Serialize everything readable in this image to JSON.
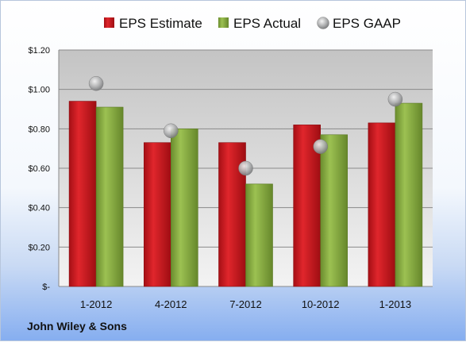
{
  "colors": {
    "estimate": "#c0161c",
    "actual": "#7fa33a",
    "gaap": "#a9aaab",
    "plot_bg_top": "#c4c4c4",
    "plot_bg_bottom": "#f3f3f3"
  },
  "footer": {
    "company": "John Wiley & Sons"
  },
  "chart_data": {
    "type": "bar",
    "categories": [
      "1-2012",
      "4-2012",
      "7-2012",
      "10-2012",
      "1-2013"
    ],
    "series": [
      {
        "name": "EPS Estimate",
        "kind": "bar",
        "values": [
          0.94,
          0.73,
          0.73,
          0.82,
          0.83
        ]
      },
      {
        "name": "EPS Actual",
        "kind": "bar",
        "values": [
          0.91,
          0.8,
          0.52,
          0.77,
          0.93
        ]
      },
      {
        "name": "EPS GAAP",
        "kind": "marker",
        "values": [
          1.03,
          0.79,
          0.6,
          0.71,
          0.95
        ]
      }
    ],
    "ylim": [
      0,
      1.2
    ],
    "yticks": [
      0,
      0.2,
      0.4,
      0.6,
      0.8,
      1.0,
      1.2
    ],
    "ytick_labels": [
      "$-",
      "$0.20",
      "$0.40",
      "$0.60",
      "$0.80",
      "$1.00",
      "$1.20"
    ],
    "grid": true,
    "legend_position": "top"
  }
}
